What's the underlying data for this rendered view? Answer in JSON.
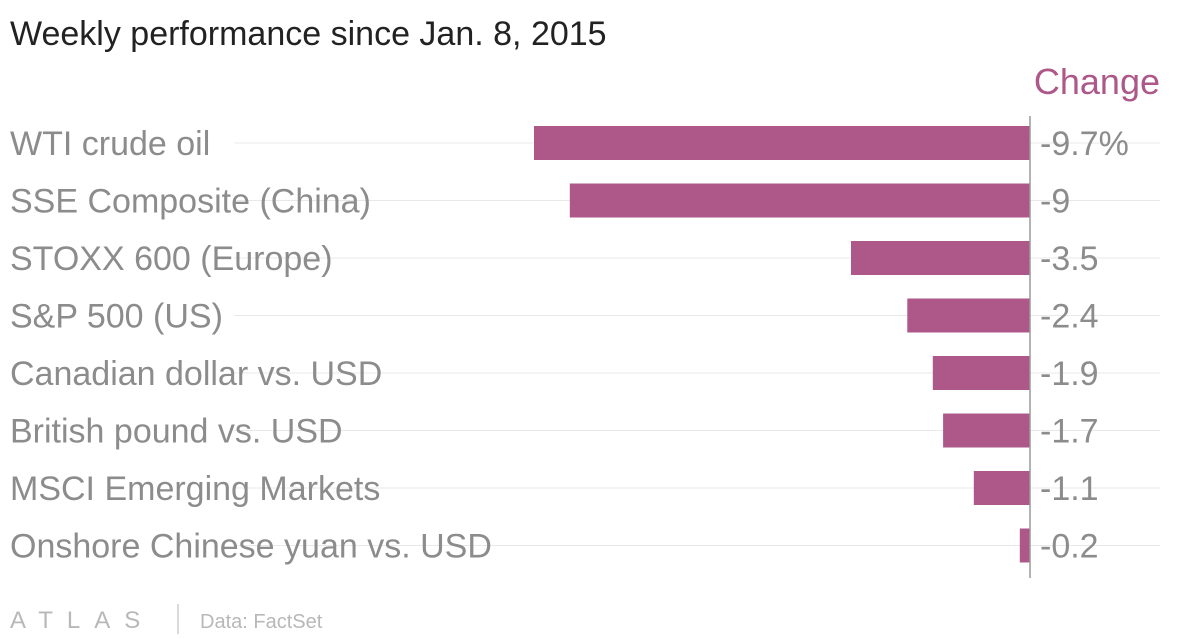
{
  "chart_data": {
    "type": "bar",
    "orientation": "horizontal",
    "title": "Weekly performance since Jan. 8, 2015",
    "categories": [
      "WTI crude oil",
      "SSE Composite (China)",
      "STOXX 600 (Europe)",
      "S&P 500 (US)",
      "Canadian dollar vs. USD",
      "British pound vs. USD",
      "MSCI Emerging Markets",
      "Onshore Chinese yuan vs. USD"
    ],
    "series": [
      {
        "name": "Change",
        "values": [
          -9.7,
          -9,
          -3.5,
          -2.4,
          -1.9,
          -1.7,
          -1.1,
          -0.2
        ],
        "value_labels": [
          "-9.7%",
          "-9",
          "-3.5",
          "-2.4",
          "-1.9",
          "-1.7",
          "-1.1",
          "-0.2"
        ]
      }
    ],
    "xlim": [
      -10,
      0
    ],
    "bar_color": "#ad5889",
    "grid": true,
    "legend_position": "top-right"
  },
  "footer": {
    "brand": "ATLAS",
    "source": "Data: FactSet"
  }
}
